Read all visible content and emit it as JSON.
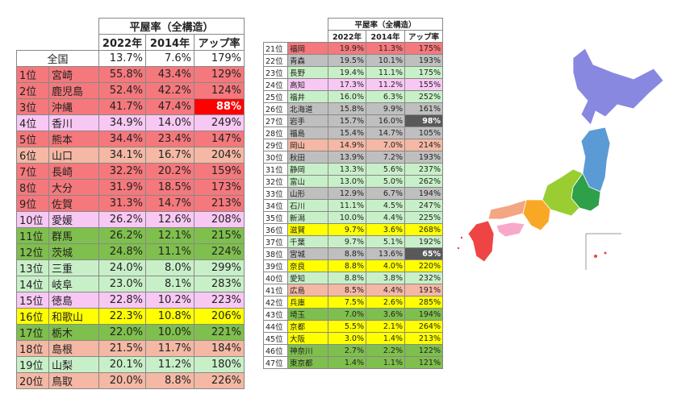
{
  "left": {
    "header": {
      "title": "平屋率（全構造）",
      "columns": [
        "2022年",
        "2014年",
        "アップ率"
      ]
    },
    "national": {
      "name": "全国",
      "values": [
        "13.7%",
        "7.6%",
        "179%"
      ]
    },
    "rows": [
      {
        "rank": "1位",
        "name": "宮崎",
        "values": [
          "55.8%",
          "43.4%",
          "129%"
        ],
        "color": "#f4787c"
      },
      {
        "rank": "2位",
        "name": "鹿児島",
        "values": [
          "52.4%",
          "42.2%",
          "124%"
        ],
        "color": "#f4787c"
      },
      {
        "rank": "3位",
        "name": "沖縄",
        "values": [
          "41.7%",
          "47.4%",
          "88%"
        ],
        "color": "#f4787c",
        "highlight": "#ff0000"
      },
      {
        "rank": "4位",
        "name": "香川",
        "values": [
          "34.9%",
          "14.0%",
          "249%"
        ],
        "color": "#f8c8f4"
      },
      {
        "rank": "5位",
        "name": "熊本",
        "values": [
          "34.4%",
          "23.4%",
          "147%"
        ],
        "color": "#f4787c"
      },
      {
        "rank": "6位",
        "name": "山口",
        "values": [
          "34.1%",
          "16.7%",
          "204%"
        ],
        "color": "#f4b8a4"
      },
      {
        "rank": "7位",
        "name": "長崎",
        "values": [
          "32.2%",
          "20.2%",
          "159%"
        ],
        "color": "#f4787c"
      },
      {
        "rank": "8位",
        "name": "大分",
        "values": [
          "31.9%",
          "18.5%",
          "173%"
        ],
        "color": "#f4787c"
      },
      {
        "rank": "9位",
        "name": "佐賀",
        "values": [
          "31.3%",
          "14.7%",
          "213%"
        ],
        "color": "#f4787c"
      },
      {
        "rank": "10位",
        "name": "愛媛",
        "values": [
          "26.2%",
          "12.6%",
          "208%"
        ],
        "color": "#f8c8f4"
      },
      {
        "rank": "11位",
        "name": "群馬",
        "values": [
          "26.2%",
          "12.1%",
          "215%"
        ],
        "color": "#7fbf4d"
      },
      {
        "rank": "12位",
        "name": "茨城",
        "values": [
          "24.8%",
          "11.1%",
          "224%"
        ],
        "color": "#7fbf4d"
      },
      {
        "rank": "13位",
        "name": "三重",
        "values": [
          "24.0%",
          "8.0%",
          "299%"
        ],
        "color": "#c8f0c8"
      },
      {
        "rank": "14位",
        "name": "岐阜",
        "values": [
          "23.0%",
          "8.1%",
          "283%"
        ],
        "color": "#c8f0c8"
      },
      {
        "rank": "15位",
        "name": "徳島",
        "values": [
          "22.8%",
          "10.2%",
          "223%"
        ],
        "color": "#f8c8f4"
      },
      {
        "rank": "16位",
        "name": "和歌山",
        "values": [
          "22.3%",
          "10.8%",
          "206%"
        ],
        "color": "#ffff00"
      },
      {
        "rank": "17位",
        "name": "栃木",
        "values": [
          "22.0%",
          "10.0%",
          "221%"
        ],
        "color": "#7fbf4d"
      },
      {
        "rank": "18位",
        "name": "島根",
        "values": [
          "21.5%",
          "11.7%",
          "184%"
        ],
        "color": "#f4b8a4"
      },
      {
        "rank": "19位",
        "name": "山梨",
        "values": [
          "20.1%",
          "11.2%",
          "180%"
        ],
        "color": "#c8f0c8"
      },
      {
        "rank": "20位",
        "name": "鳥取",
        "values": [
          "20.0%",
          "8.8%",
          "226%"
        ],
        "color": "#f4b8a4"
      }
    ]
  },
  "right": {
    "header": {
      "title": "平屋率（全構造）",
      "columns": [
        "2022年",
        "2014年",
        "アップ率"
      ]
    },
    "rows": [
      {
        "rank": "21位",
        "name": "福岡",
        "values": [
          "19.9%",
          "11.3%",
          "175%"
        ],
        "color": "#f4787c"
      },
      {
        "rank": "22位",
        "name": "青森",
        "values": [
          "19.5%",
          "10.1%",
          "193%"
        ],
        "color": "#bfbfbf"
      },
      {
        "rank": "23位",
        "name": "長野",
        "values": [
          "19.4%",
          "11.1%",
          "175%"
        ],
        "color": "#c8f0c8"
      },
      {
        "rank": "24位",
        "name": "高知",
        "values": [
          "17.3%",
          "11.2%",
          "155%"
        ],
        "color": "#f8c8f4"
      },
      {
        "rank": "25位",
        "name": "福井",
        "values": [
          "16.0%",
          "6.3%",
          "252%"
        ],
        "color": "#c8f0c8"
      },
      {
        "rank": "26位",
        "name": "北海道",
        "values": [
          "15.8%",
          "9.9%",
          "161%"
        ],
        "color": "#bfbfbf"
      },
      {
        "rank": "27位",
        "name": "岩手",
        "values": [
          "15.7%",
          "16.0%",
          "98%"
        ],
        "color": "#bfbfbf",
        "highlight": "#595959"
      },
      {
        "rank": "28位",
        "name": "福島",
        "values": [
          "15.4%",
          "14.7%",
          "105%"
        ],
        "color": "#bfbfbf"
      },
      {
        "rank": "29位",
        "name": "岡山",
        "values": [
          "14.9%",
          "7.0%",
          "214%"
        ],
        "color": "#f4b8a4"
      },
      {
        "rank": "30位",
        "name": "秋田",
        "values": [
          "13.9%",
          "7.2%",
          "193%"
        ],
        "color": "#bfbfbf"
      },
      {
        "rank": "31位",
        "name": "静岡",
        "values": [
          "13.3%",
          "5.6%",
          "237%"
        ],
        "color": "#c8f0c8"
      },
      {
        "rank": "32位",
        "name": "富山",
        "values": [
          "13.0%",
          "5.0%",
          "262%"
        ],
        "color": "#c8f0c8"
      },
      {
        "rank": "33位",
        "name": "山形",
        "values": [
          "12.9%",
          "6.7%",
          "194%"
        ],
        "color": "#bfbfbf"
      },
      {
        "rank": "34位",
        "name": "石川",
        "values": [
          "11.1%",
          "4.5%",
          "247%"
        ],
        "color": "#c8f0c8"
      },
      {
        "rank": "35位",
        "name": "新潟",
        "values": [
          "10.0%",
          "4.4%",
          "225%"
        ],
        "color": "#c8f0c8"
      },
      {
        "rank": "36位",
        "name": "滋賀",
        "values": [
          "9.7%",
          "3.6%",
          "268%"
        ],
        "color": "#ffff00"
      },
      {
        "rank": "37位",
        "name": "千葉",
        "values": [
          "9.7%",
          "5.1%",
          "192%"
        ],
        "color": "#c8f0c8"
      },
      {
        "rank": "38位",
        "name": "宮城",
        "values": [
          "8.8%",
          "13.6%",
          "65%"
        ],
        "color": "#bfbfbf",
        "highlight": "#595959"
      },
      {
        "rank": "39位",
        "name": "奈良",
        "values": [
          "8.8%",
          "4.0%",
          "220%"
        ],
        "color": "#ffff00"
      },
      {
        "rank": "40位",
        "name": "愛知",
        "values": [
          "8.8%",
          "3.8%",
          "232%"
        ],
        "color": "#c8f0c8"
      },
      {
        "rank": "41位",
        "name": "広島",
        "values": [
          "8.5%",
          "4.4%",
          "191%"
        ],
        "color": "#f4b8a4"
      },
      {
        "rank": "42位",
        "name": "兵庫",
        "values": [
          "7.5%",
          "2.6%",
          "285%"
        ],
        "color": "#ffff00"
      },
      {
        "rank": "43位",
        "name": "埼玉",
        "values": [
          "7.0%",
          "3.6%",
          "194%"
        ],
        "color": "#7fbf4d"
      },
      {
        "rank": "44位",
        "name": "京都",
        "values": [
          "5.5%",
          "2.1%",
          "264%"
        ],
        "color": "#ffff00"
      },
      {
        "rank": "45位",
        "name": "大阪",
        "values": [
          "3.0%",
          "1.4%",
          "213%"
        ],
        "color": "#ffff00"
      },
      {
        "rank": "46位",
        "name": "神奈川",
        "values": [
          "2.7%",
          "2.2%",
          "122%"
        ],
        "color": "#7fbf4d"
      },
      {
        "rank": "47位",
        "name": "東京都",
        "values": [
          "1.4%",
          "1.1%",
          "121%"
        ],
        "color": "#7fbf4d"
      }
    ]
  }
}
